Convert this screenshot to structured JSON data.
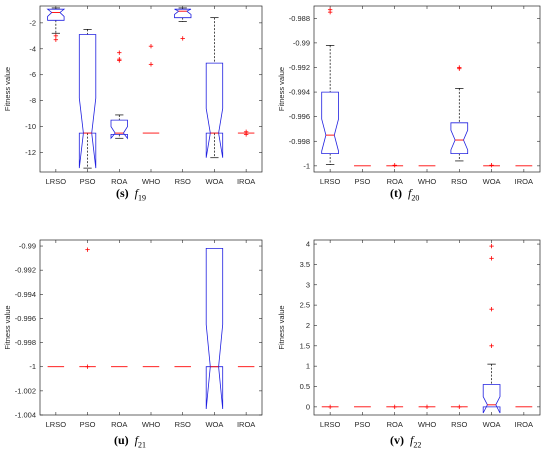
{
  "chart_data": [
    {
      "id": "s",
      "type": "box",
      "caption_letter": "(s)",
      "caption_func": "f",
      "caption_sub": "19",
      "ylabel": "Fitness value",
      "categories": [
        "LRSO",
        "PSO",
        "ROA",
        "WHO",
        "RSO",
        "WOA",
        "IROA"
      ],
      "ylim": [
        -13.5,
        -0.7
      ],
      "yticks": [
        -12,
        -10,
        -8,
        -6,
        -4,
        -2
      ],
      "ytick_labels": [
        "-12",
        "-10",
        "-8",
        "-6",
        "-4",
        "-2"
      ],
      "boxes": [
        {
          "name": "LRSO",
          "min": -2.8,
          "q1": -1.8,
          "median": -1.2,
          "q3": -0.95,
          "max": -0.85,
          "notch_lo": -1.5,
          "notch_hi": -0.95,
          "outliers": [
            -3.0,
            -3.3
          ]
        },
        {
          "name": "PSO",
          "min": -13.2,
          "q1": -10.5,
          "median": -10.5,
          "q3": -2.9,
          "max": -2.5,
          "notch_lo": -13.2,
          "notch_hi": -7.8,
          "outliers": []
        },
        {
          "name": "ROA",
          "min": -10.9,
          "q1": -10.6,
          "median": -10.5,
          "q3": -9.5,
          "max": -9.1,
          "notch_lo": -10.9,
          "notch_hi": -10.0,
          "outliers": [
            -4.3,
            -4.8,
            -4.9
          ]
        },
        {
          "name": "WHO",
          "min": -10.5,
          "q1": -10.5,
          "median": -10.5,
          "q3": -10.5,
          "max": -10.5,
          "notch_lo": -10.5,
          "notch_hi": -10.5,
          "outliers": [
            -3.8,
            -5.2
          ]
        },
        {
          "name": "RSO",
          "min": -1.9,
          "q1": -1.6,
          "median": -1.1,
          "q3": -0.95,
          "max": -0.85,
          "notch_lo": -1.35,
          "notch_hi": -0.95,
          "outliers": [
            -3.2
          ]
        },
        {
          "name": "WOA",
          "min": -12.4,
          "q1": -10.5,
          "median": -10.5,
          "q3": -5.1,
          "max": -1.6,
          "notch_lo": -12.4,
          "notch_hi": -8.6,
          "outliers": []
        },
        {
          "name": "IROA",
          "min": -10.5,
          "q1": -10.5,
          "median": -10.5,
          "q3": -10.5,
          "max": -10.5,
          "notch_lo": -10.5,
          "notch_hi": -10.5,
          "outliers": [
            -10.4,
            -10.6
          ]
        }
      ]
    },
    {
      "id": "t",
      "type": "box",
      "caption_letter": "(t)",
      "caption_func": "f",
      "caption_sub": "20",
      "ylabel": "Fitness value",
      "categories": [
        "LRSO",
        "PSO",
        "ROA",
        "WHO",
        "RSO",
        "WOA",
        "IROA"
      ],
      "ylim": [
        -1.0005,
        -0.987
      ],
      "yticks": [
        -1,
        -0.998,
        -0.996,
        -0.994,
        -0.992,
        -0.99,
        -0.988
      ],
      "ytick_labels": [
        "-1",
        "-0.998",
        "-0.996",
        "-0.994",
        "-0.992",
        "-0.99",
        "-0.988"
      ],
      "boxes": [
        {
          "name": "LRSO",
          "min": -0.9999,
          "q1": -0.999,
          "median": -0.9975,
          "q3": -0.994,
          "max": -0.9902,
          "notch_lo": -0.9988,
          "notch_hi": -0.9962,
          "outliers": [
            -0.9873,
            -0.9875
          ]
        },
        {
          "name": "PSO",
          "min": -1.0,
          "q1": -1.0,
          "median": -1.0,
          "q3": -1.0,
          "max": -1.0,
          "notch_lo": -1.0,
          "notch_hi": -1.0,
          "outliers": []
        },
        {
          "name": "ROA",
          "min": -1.0,
          "q1": -1.0,
          "median": -1.0,
          "q3": -1.0,
          "max": -1.0,
          "notch_lo": -1.0,
          "notch_hi": -1.0,
          "outliers": [
            -0.99995
          ]
        },
        {
          "name": "WHO",
          "min": -1.0,
          "q1": -1.0,
          "median": -1.0,
          "q3": -1.0,
          "max": -1.0,
          "notch_lo": -1.0,
          "notch_hi": -1.0,
          "outliers": []
        },
        {
          "name": "RSO",
          "min": -0.9996,
          "q1": -0.999,
          "median": -0.9979,
          "q3": -0.9965,
          "max": -0.9937,
          "notch_lo": -0.9987,
          "notch_hi": -0.9971,
          "outliers": [
            -0.992,
            -0.9921
          ]
        },
        {
          "name": "WOA",
          "min": -1.0,
          "q1": -1.0,
          "median": -1.0,
          "q3": -1.0,
          "max": -1.0,
          "notch_lo": -1.0,
          "notch_hi": -1.0,
          "outliers": [
            -0.99995
          ]
        },
        {
          "name": "IROA",
          "min": -1.0,
          "q1": -1.0,
          "median": -1.0,
          "q3": -1.0,
          "max": -1.0,
          "notch_lo": -1.0,
          "notch_hi": -1.0,
          "outliers": []
        }
      ]
    },
    {
      "id": "u",
      "type": "box",
      "caption_letter": "(u)",
      "caption_func": "f",
      "caption_sub": "21",
      "ylabel": "Fitness value",
      "categories": [
        "LRSO",
        "PSO",
        "ROA",
        "WHO",
        "RSO",
        "WOA",
        "IROA"
      ],
      "ylim": [
        -1.004,
        -0.9895
      ],
      "yticks": [
        -1.004,
        -1.002,
        -1,
        -0.998,
        -0.996,
        -0.994,
        -0.992,
        -0.99
      ],
      "ytick_labels": [
        "-1.004",
        "-1.002",
        "-1",
        "-0.998",
        "-0.996",
        "-0.994",
        "-0.992",
        "-0.99"
      ],
      "boxes": [
        {
          "name": "LRSO",
          "min": -1.0,
          "q1": -1.0,
          "median": -1.0,
          "q3": -1.0,
          "max": -1.0,
          "notch_lo": -1.0,
          "notch_hi": -1.0,
          "outliers": []
        },
        {
          "name": "PSO",
          "min": -1.0,
          "q1": -1.0,
          "median": -1.0,
          "q3": -1.0,
          "max": -1.0,
          "notch_lo": -1.0,
          "notch_hi": -1.0,
          "outliers": [
            -0.9903,
            -1.0
          ]
        },
        {
          "name": "ROA",
          "min": -1.0,
          "q1": -1.0,
          "median": -1.0,
          "q3": -1.0,
          "max": -1.0,
          "notch_lo": -1.0,
          "notch_hi": -1.0,
          "outliers": []
        },
        {
          "name": "WHO",
          "min": -1.0,
          "q1": -1.0,
          "median": -1.0,
          "q3": -1.0,
          "max": -1.0,
          "notch_lo": -1.0,
          "notch_hi": -1.0,
          "outliers": []
        },
        {
          "name": "RSO",
          "min": -1.0,
          "q1": -1.0,
          "median": -1.0,
          "q3": -1.0,
          "max": -1.0,
          "notch_lo": -1.0,
          "notch_hi": -1.0,
          "outliers": []
        },
        {
          "name": "WOA",
          "min": -1.0,
          "q1": -1.0,
          "median": -1.0,
          "q3": -0.9902,
          "max": -0.9902,
          "notch_lo": -1.0035,
          "notch_hi": -0.9965,
          "outliers": []
        },
        {
          "name": "IROA",
          "min": -1.0,
          "q1": -1.0,
          "median": -1.0,
          "q3": -1.0,
          "max": -1.0,
          "notch_lo": -1.0,
          "notch_hi": -1.0,
          "outliers": []
        }
      ]
    },
    {
      "id": "v",
      "type": "box",
      "caption_letter": "(v)",
      "caption_func": "f",
      "caption_sub": "22",
      "ylabel": "Fitness value",
      "categories": [
        "LRSO",
        "PSO",
        "ROA",
        "WHO",
        "RSO",
        "WOA",
        "IROA"
      ],
      "ylim": [
        -0.2,
        4.1
      ],
      "yticks": [
        0,
        0.5,
        1,
        1.5,
        2,
        2.5,
        3,
        3.5,
        4
      ],
      "ytick_labels": [
        "0",
        "0.5",
        "1",
        "1.5",
        "2",
        "2.5",
        "3",
        "3.5",
        "4"
      ],
      "boxes": [
        {
          "name": "LRSO",
          "min": 0,
          "q1": 0,
          "median": 0,
          "q3": 0,
          "max": 0,
          "notch_lo": 0,
          "notch_hi": 0,
          "outliers": [
            0
          ]
        },
        {
          "name": "PSO",
          "min": 0,
          "q1": 0,
          "median": 0,
          "q3": 0,
          "max": 0,
          "notch_lo": 0,
          "notch_hi": 0,
          "outliers": []
        },
        {
          "name": "ROA",
          "min": 0,
          "q1": 0,
          "median": 0,
          "q3": 0,
          "max": 0,
          "notch_lo": 0,
          "notch_hi": 0,
          "outliers": [
            0
          ]
        },
        {
          "name": "WHO",
          "min": 0,
          "q1": 0,
          "median": 0,
          "q3": 0,
          "max": 0,
          "notch_lo": 0,
          "notch_hi": 0,
          "outliers": [
            0
          ]
        },
        {
          "name": "RSO",
          "min": 0,
          "q1": 0,
          "median": 0,
          "q3": 0,
          "max": 0,
          "notch_lo": 0,
          "notch_hi": 0,
          "outliers": [
            0
          ]
        },
        {
          "name": "WOA",
          "min": 0,
          "q1": 0,
          "median": 0.05,
          "q3": 0.55,
          "max": 1.05,
          "notch_lo": -0.15,
          "notch_hi": 0.25,
          "outliers": [
            1.5,
            2.4,
            3.65,
            3.95
          ]
        },
        {
          "name": "IROA",
          "min": 0,
          "q1": 0,
          "median": 0,
          "q3": 0,
          "max": 0,
          "notch_lo": 0,
          "notch_hi": 0,
          "outliers": []
        }
      ]
    }
  ],
  "style": {
    "box_color": "#2020e0",
    "median_color": "#ff0000",
    "whisker_color": "#000000",
    "outlier_color": "#ff0000",
    "axis_color": "#262626"
  }
}
